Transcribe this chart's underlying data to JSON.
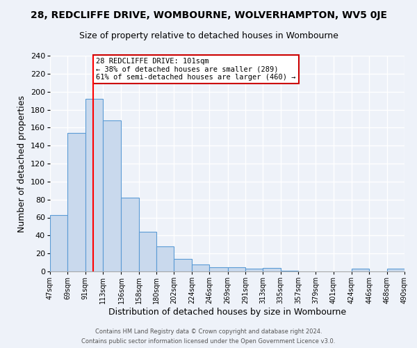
{
  "title_line1": "28, REDCLIFFE DRIVE, WOMBOURNE, WOLVERHAMPTON, WV5 0JE",
  "title_line2": "Size of property relative to detached houses in Wombourne",
  "xlabel": "Distribution of detached houses by size in Wombourne",
  "ylabel": "Number of detached properties",
  "bin_edges": [
    47,
    69,
    91,
    113,
    136,
    158,
    180,
    202,
    224,
    246,
    269,
    291,
    313,
    335,
    357,
    379,
    401,
    424,
    446,
    468,
    490
  ],
  "bar_heights": [
    63,
    154,
    192,
    168,
    82,
    44,
    28,
    14,
    8,
    5,
    5,
    3,
    4,
    1,
    0,
    0,
    0,
    3,
    0,
    3
  ],
  "bar_color": "#c9d9ed",
  "bar_edge_color": "#5b9bd5",
  "tick_labels": [
    "47sqm",
    "69sqm",
    "91sqm",
    "113sqm",
    "136sqm",
    "158sqm",
    "180sqm",
    "202sqm",
    "224sqm",
    "246sqm",
    "269sqm",
    "291sqm",
    "313sqm",
    "335sqm",
    "357sqm",
    "379sqm",
    "401sqm",
    "424sqm",
    "446sqm",
    "468sqm",
    "490sqm"
  ],
  "red_line_x": 101,
  "ylim": [
    0,
    240
  ],
  "yticks": [
    0,
    20,
    40,
    60,
    80,
    100,
    120,
    140,
    160,
    180,
    200,
    220,
    240
  ],
  "annotation_title": "28 REDCLIFFE DRIVE: 101sqm",
  "annotation_line1": "← 38% of detached houses are smaller (289)",
  "annotation_line2": "61% of semi-detached houses are larger (460) →",
  "footer_line1": "Contains HM Land Registry data © Crown copyright and database right 2024.",
  "footer_line2": "Contains public sector information licensed under the Open Government Licence v3.0.",
  "background_color": "#eef2f9",
  "plot_bg_color": "#eef2f9",
  "grid_color": "#ffffff",
  "title_fontsize": 10,
  "subtitle_fontsize": 9,
  "annotation_box_color": "#ffffff",
  "annotation_box_edge": "#cc0000"
}
